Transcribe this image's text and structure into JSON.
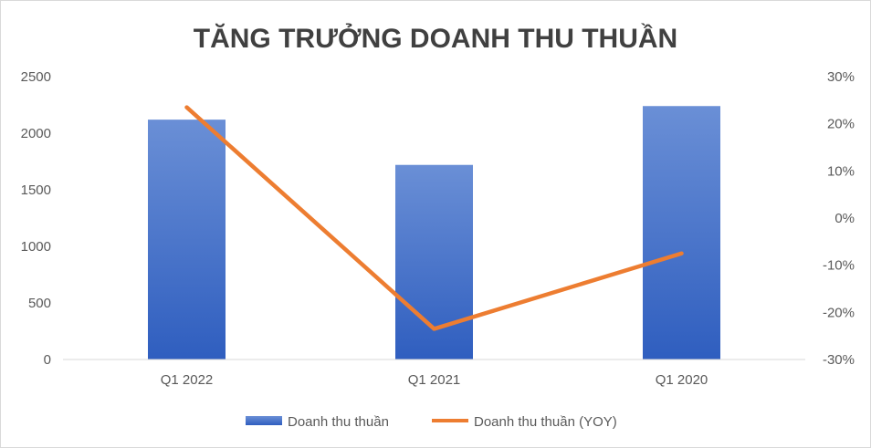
{
  "chart_data": {
    "type": "bar",
    "title": "TĂNG TRƯỞNG DOANH THU THUẦN",
    "categories": [
      "Q1 2022",
      "Q1 2021",
      "Q1 2020"
    ],
    "series": [
      {
        "name": "Doanh thu thuần",
        "type": "bar",
        "axis": "left",
        "values": [
          2120,
          1720,
          2240
        ]
      },
      {
        "name": "Doanh thu thuần (YOY)",
        "type": "line",
        "axis": "right",
        "values": [
          23.5,
          -23.5,
          -7.5
        ]
      }
    ],
    "y_left": {
      "min": 0,
      "max": 2500,
      "ticks": [
        "0",
        "500",
        "1000",
        "1500",
        "2000",
        "2500"
      ]
    },
    "y_right": {
      "min": -30,
      "max": 30,
      "ticks": [
        "-30%",
        "-20%",
        "-10%",
        "0%",
        "10%",
        "20%",
        "30%"
      ]
    },
    "grid": false,
    "legend_position": "bottom",
    "colors": {
      "bar": "#4472C4",
      "bar_light": "#6A8FD6",
      "line": "#ED7D31",
      "text": "#595959",
      "title": "#404040",
      "axis": "#d9d9d9"
    }
  }
}
